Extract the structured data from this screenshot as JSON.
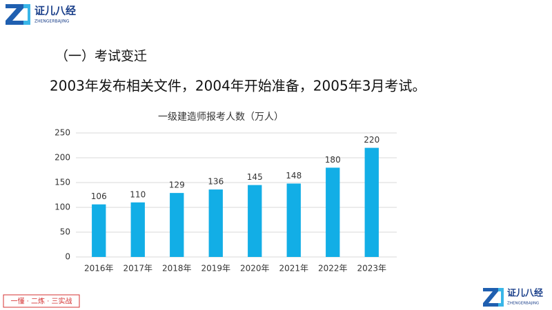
{
  "logo": {
    "name": "证儿八经",
    "pinyin": "ZHENGERBAJING"
  },
  "section_title": "（一）考试变迁",
  "body_text": "2003年发布相关文件，2004年开始准备，2005年3月考试。",
  "footer_tag": "一懂 · 二炼 · 三实战",
  "chart_data": {
    "type": "bar",
    "title": "一级建造师报考人数（万人）",
    "categories": [
      "2016年",
      "2017年",
      "2018年",
      "2019年",
      "2020年",
      "2021年",
      "2022年",
      "2023年"
    ],
    "values": [
      106,
      110,
      129,
      136,
      145,
      148,
      180,
      220
    ],
    "color": "#12aee6",
    "ylim": [
      0,
      250
    ],
    "yticks": [
      0,
      50,
      100,
      150,
      200,
      250
    ],
    "grid": true
  }
}
